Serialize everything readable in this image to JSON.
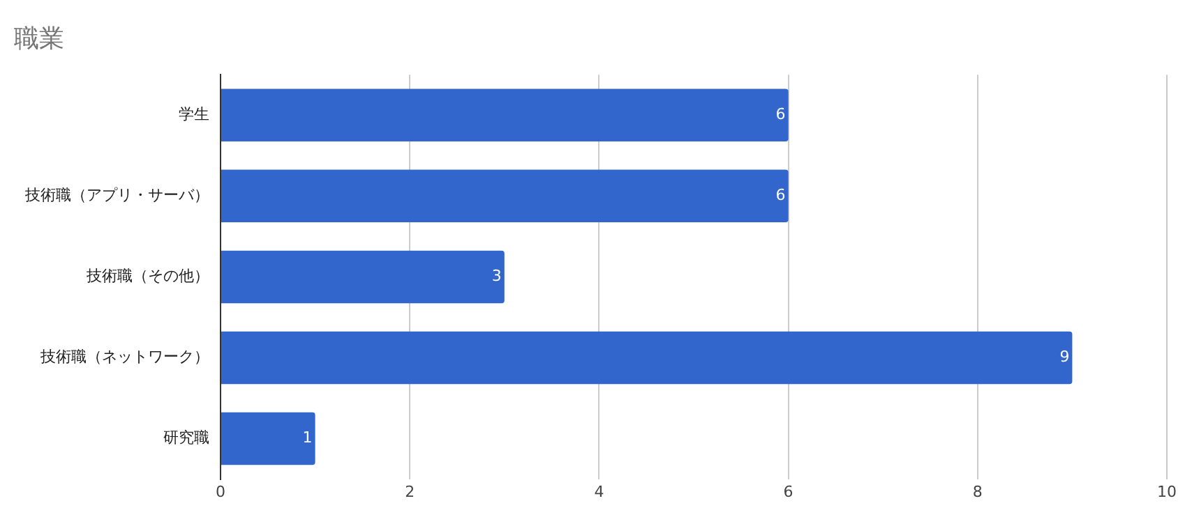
{
  "chart_data": {
    "type": "bar",
    "orientation": "horizontal",
    "title": "職業",
    "categories": [
      "学生",
      "技術職（アプリ・サーバ）",
      "技術職（その他）",
      "技術職（ネットワーク）",
      "研究職"
    ],
    "values": [
      6,
      6,
      3,
      9,
      1
    ],
    "color": "#3366cc",
    "xlim": [
      0,
      10
    ],
    "xticks": [
      0,
      2,
      4,
      6,
      8,
      10
    ],
    "grid": "x",
    "legend": false,
    "data_labels": true
  }
}
